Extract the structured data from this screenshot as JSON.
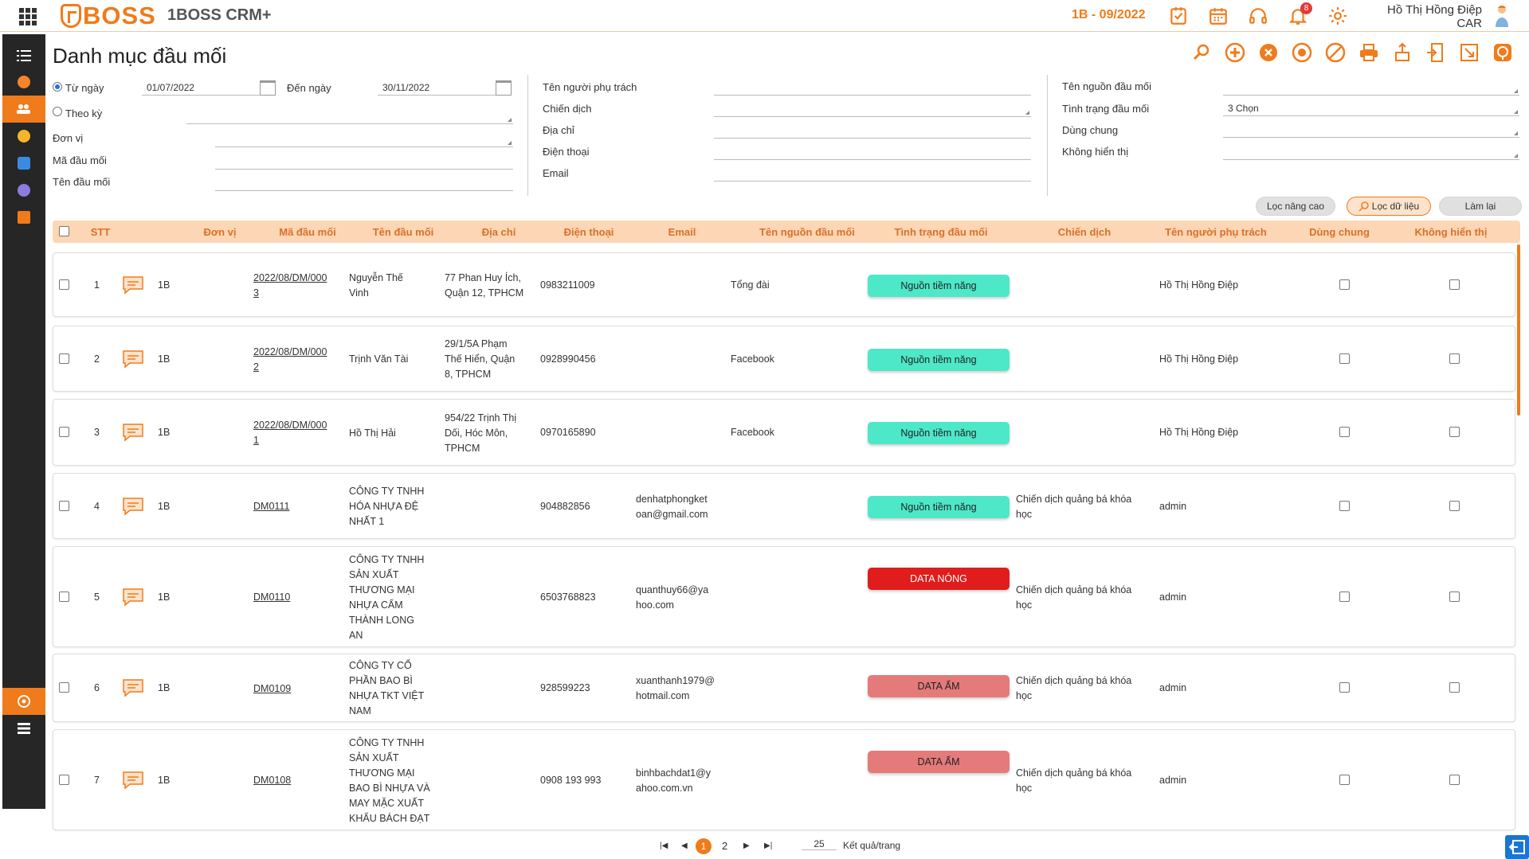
{
  "app": {
    "logo": "BOSS",
    "name": "1BOSS CRM+",
    "period": "1B - 09/2022",
    "notifications": "8",
    "user_name": "Hồ Thị Hồng Điệp",
    "user_role": "CAR"
  },
  "page": {
    "title": "Danh mục đầu mối"
  },
  "filters": {
    "from_label": "Từ ngày",
    "from_value": "01/07/2022",
    "to_label": "Đến ngày",
    "to_value": "30/11/2022",
    "period_label": "Theo kỳ",
    "unit_label": "Đơn vị",
    "code_label": "Mã đầu mối",
    "name_label": "Tên đầu mối",
    "owner_label": "Tên người phụ trách",
    "campaign_label": "Chiến dịch",
    "address_label": "Địa chỉ",
    "phone_label": "Điện thoại",
    "email_label": "Email",
    "source_label": "Tên nguồn đầu mối",
    "status_label": "Tình trạng đầu mối",
    "status_value": "3 Chọn",
    "shared_label": "Dùng chung",
    "hidden_label": "Không hiển thị"
  },
  "buttons": {
    "advanced": "Lọc nâng cao",
    "filter": "Lọc dữ liệu",
    "reset": "Làm lại"
  },
  "columns": [
    "STT",
    "Đơn vị",
    "Mã đầu mối",
    "Tên đầu mối",
    "Địa chỉ",
    "Điện thoại",
    "Email",
    "Tên nguồn đầu mối",
    "Tình trạng đầu mối",
    "Chiến dịch",
    "Tên người phụ trách",
    "Dùng chung",
    "Không hiển thị"
  ],
  "rows": [
    {
      "stt": "1",
      "unit": "1B",
      "code": [
        "2022/08/DM/000",
        "3"
      ],
      "name": [
        "Nguyễn Thế",
        "Vinh"
      ],
      "address": [
        "77 Phan Huy Ích,",
        "Quận 12, TPHCM"
      ],
      "phone": "0983211009",
      "email": [
        "",
        ""
      ],
      "source": "Tổng đài",
      "status": "Nguồn tiềm năng",
      "status_color": "#4de8c8",
      "campaign": [
        "",
        ""
      ],
      "owner": "Hồ Thị Hồng Điệp"
    },
    {
      "stt": "2",
      "unit": "1B",
      "code": [
        "2022/08/DM/000",
        "2"
      ],
      "name": [
        "Trịnh Văn Tài",
        ""
      ],
      "address": [
        "29/1/5A Phạm",
        "Thế Hiển, Quận",
        "8, TPHCM"
      ],
      "phone": "0928990456",
      "email": [
        "",
        ""
      ],
      "source": "Facebook",
      "status": "Nguồn tiềm năng",
      "status_color": "#4de8c8",
      "campaign": [
        "",
        ""
      ],
      "owner": "Hồ Thị Hồng Điệp"
    },
    {
      "stt": "3",
      "unit": "1B",
      "code": [
        "2022/08/DM/000",
        "1"
      ],
      "name": [
        "Hồ Thị Hải",
        ""
      ],
      "address": [
        "954/22 Trịnh Thị",
        "Dối, Hóc Môn,",
        "TPHCM"
      ],
      "phone": "0970165890",
      "email": [
        "",
        ""
      ],
      "source": "Facebook",
      "status": "Nguồn tiềm năng",
      "status_color": "#4de8c8",
      "campaign": [
        "",
        ""
      ],
      "owner": "Hồ Thị Hồng Điệp"
    },
    {
      "stt": "4",
      "unit": "1B",
      "code": [
        "DM0111",
        ""
      ],
      "name": [
        "CÔNG TY TNHH",
        "HÓA NHỰA ĐỆ",
        "NHẤT 1"
      ],
      "address": [
        ""
      ],
      "phone": "904882856",
      "email": [
        "denhatphongket",
        "oan@gmail.com"
      ],
      "source": "",
      "status": "Nguồn tiềm năng",
      "status_color": "#4de8c8",
      "campaign": [
        "Chiến dịch quảng bá khóa",
        "học"
      ],
      "owner": "admin"
    },
    {
      "stt": "5",
      "unit": "1B",
      "code": [
        "DM0110",
        ""
      ],
      "name": [
        "CÔNG TY TNHH",
        "SẢN XUẤT",
        "THƯƠNG MẠI",
        "NHỰA CẨM",
        "THÀNH LONG",
        "AN"
      ],
      "address": [
        ""
      ],
      "phone": "6503768823",
      "email": [
        "quanthuy66@ya",
        "hoo.com"
      ],
      "source": "",
      "status": "DATA NÓNG",
      "status_color": "#e01c1c",
      "campaign": [
        "Chiến dịch quảng bá khóa",
        "học"
      ],
      "owner": "admin"
    },
    {
      "stt": "6",
      "unit": "1B",
      "code": [
        "DM0109",
        ""
      ],
      "name": [
        "CÔNG TY CỔ",
        "PHẦN BAO BÌ",
        "NHỰA TKT VIỆT",
        "NAM"
      ],
      "address": [
        ""
      ],
      "phone": "928599223",
      "email": [
        "xuanthanh1979@",
        "hotmail.com"
      ],
      "source": "",
      "status": "DATA ẤM",
      "status_color": "#e57a7a",
      "campaign": [
        "Chiến dịch quảng bá khóa",
        "học"
      ],
      "owner": "admin"
    },
    {
      "stt": "7",
      "unit": "1B",
      "code": [
        "DM0108",
        ""
      ],
      "name": [
        "CÔNG TY TNHH",
        "SẢN XUẤT",
        "THƯƠNG MẠI",
        "BAO BÌ NHỰA VÀ",
        "MAY MẶC XUẤT",
        "KHẨU BÁCH ĐẠT"
      ],
      "address": [
        ""
      ],
      "phone": "0908 193 993",
      "email": [
        "binhbachdat1@y",
        "ahoo.com.vn"
      ],
      "source": "",
      "status": "DATA ẤM",
      "status_color": "#e57a7a",
      "campaign": [
        "Chiến dịch quảng bá khóa",
        "học"
      ],
      "owner": "admin"
    }
  ],
  "pagination": {
    "current": "1",
    "next": "2",
    "page_size": "25",
    "page_size_label": "Kết quả/trang"
  },
  "colors": {
    "accent": "#f07b1a",
    "header_bg": "#fcd6b5",
    "sidebar": "#262626"
  }
}
